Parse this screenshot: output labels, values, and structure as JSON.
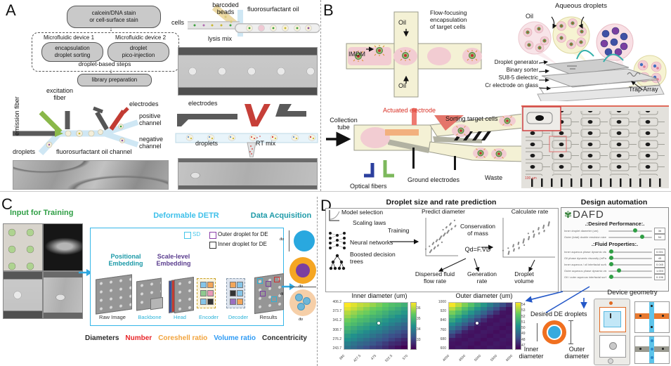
{
  "letters": {
    "a": "A",
    "b": "B",
    "c": "C",
    "d": "D"
  },
  "panelA": {
    "flow": {
      "stain": "calcein/DNA stain\nor cell-surface stain",
      "device1": "Microfluidic device 1",
      "device2": "Microfluidic device 2",
      "sort_box": "encapsulation\ndroplet sorting",
      "pico_box": "droplet\npico-injection",
      "steps": "droplet-based steps",
      "library": "library preparation",
      "arrow": "↓"
    },
    "sorter": {
      "emission": "emission fiber",
      "excitation": "excitation\nfiber",
      "electrodes": "electrodes",
      "positive": "positive\nchannel",
      "negative": "negative\nchannel",
      "droplets": "droplets",
      "oil": "fluorosurfactant oil channel"
    },
    "encap": {
      "cells": "cells",
      "beads": "barcoded\nbeads",
      "oil": "fluorosurfactant oil",
      "lysis": "lysis mix"
    },
    "pico": {
      "electrodes": "electrodes",
      "droplets": "droplets",
      "rt": "RT mix"
    }
  },
  "panelB": {
    "flow_focus": "Flow-focusing\nencapsulation\nof target cells",
    "oil_top": "Oil",
    "oil_bottom": "Oil",
    "imdm": "IMDM",
    "aqueous": "Aqueous droplets",
    "oil_right": "Oil",
    "stack": [
      "Droplet generator",
      "Binary sorter",
      "SU8-5 dielectric",
      "Cr electrode on glass"
    ],
    "trap_array": "Trap Array",
    "actuated": "Actuated electrode",
    "collection": "Collection\ntube",
    "sorting": "Sorting target cells",
    "ground": "Ground electrodes",
    "waste": "Waste",
    "fibers": "Optical fibers",
    "scale": "100 µm",
    "accent_red": "#d93025"
  },
  "panelC": {
    "input": "Input for Training",
    "detr": "Deformable DETR",
    "acq": "Data Acquisition",
    "legend": [
      {
        "label": "SD",
        "color": "#45c6ea"
      },
      {
        "label": "Outer droplet for DE",
        "color": "#8a3fa8"
      },
      {
        "label": "Inner droplet for DE",
        "color": "#333333"
      }
    ],
    "pos_embed": "Positional\nEmbedding",
    "scale_embed": "Scale-level\nEmbedding",
    "pipeline": [
      {
        "label": "Raw Image",
        "color": "#333333"
      },
      {
        "label": "Backbone",
        "color": "#2bb3d8"
      },
      {
        "label": "Head",
        "color": "#2bb3d8"
      },
      {
        "label": "Encoder",
        "color": "#2bb3d8"
      },
      {
        "label": "Decoder",
        "color": "#2bb3d8"
      },
      {
        "label": "Results",
        "color": "#333333"
      }
    ],
    "dims": {
      "outer": "d̄o",
      "inner": "d̄i"
    },
    "metrics": [
      {
        "label": "Diameters",
        "color": "#2b2b2b"
      },
      {
        "label": "Number",
        "color": "#e8262a"
      },
      {
        "label": "Coreshell ratio",
        "color": "#f2a33c"
      },
      {
        "label": "Volume ratio",
        "color": "#2f9bf4"
      },
      {
        "label": "Concentricity",
        "color": "#2b2b2b"
      }
    ],
    "title_colors": {
      "input": "#2e9e44",
      "detr": "#3ec0ea",
      "acq": "#1d9aa8"
    }
  },
  "panelD": {
    "pred_header": "Droplet size and rate prediction",
    "auto_header": "Design automation",
    "model_selection": "Model selection",
    "scaling": "Scaling laws",
    "training": "Training",
    "nn": "Neural networks",
    "trees": "Boosted decision\ntrees",
    "predict": "Predict diameter",
    "conservation": "Conservation\nof mass",
    "formula": "Qd=F.VD",
    "calc": "Calculate rate",
    "dispersed": "Dispersed fluid\nflow rate",
    "gen_rate": "Generation\nrate",
    "volume": "Droplet\nvolume",
    "dafd": {
      "logo": "DAFD",
      "flower": "✾",
      "desired_header": ".:Desired Performance:.",
      "fluid_header": ".:Fluid Properties:.",
      "desired_sliders": [
        {
          "label": "Inner droplet diameter (um)",
          "value": "36",
          "knob_pct": 62
        },
        {
          "label": "Outer (total) double emulsion size (um)",
          "value": "54",
          "knob_pct": 78
        }
      ],
      "fluid_sliders": [
        {
          "label": "Inner aqueous phase dynamic viscosity (mPa.s)",
          "value": "0.001",
          "knob_pct": 6
        },
        {
          "label": "Oil phase dynamic viscosity (mPa.s)",
          "value": "45",
          "knob_pct": 6
        },
        {
          "label": "Inner aqueous / oil interfacial surface tension (mN/m)",
          "value": "0.045",
          "knob_pct": 6
        },
        {
          "label": "Outer aqueous phase dynamic viscosity (mPa.s)",
          "value": "1.003",
          "knob_pct": 24
        },
        {
          "label": "Oil / outer aqueous interfacial surface tension (mN/m)",
          "value": "0.196",
          "knob_pct": 6
        }
      ],
      "accent_green": "#2f9e44"
    },
    "device_geometry": "Device geometry",
    "desired": "Desired DE droplets",
    "inner_d": "Inner\ndiameter",
    "outer_d": "Outer\ndiameter",
    "arrow_blue": "#2458c8"
  },
  "chart_data": [
    {
      "type": "heatmap",
      "title": "Inner diameter (um)",
      "colormap": "viridis",
      "x_ticks": [
        "380",
        "427.5",
        "475",
        "522.5",
        "570"
      ],
      "y_ticks": [
        "406.2",
        "373.7",
        "341.2",
        "308.7",
        "276.2",
        "243.7"
      ],
      "colorbar_ticks": [
        "36",
        "35",
        "34",
        "33"
      ],
      "vmin": 32.2,
      "vmax": 36.6,
      "marker": {
        "row": 5,
        "col": 5
      },
      "values": [
        [
          36.6,
          36.4,
          36.2,
          36.1,
          35.9,
          35.7,
          35.5,
          35.3,
          35.2,
          35.0
        ],
        [
          36.4,
          36.2,
          36.0,
          35.8,
          35.6,
          35.5,
          35.3,
          35.1,
          34.9,
          34.7
        ],
        [
          36.1,
          35.9,
          35.7,
          35.6,
          35.4,
          35.2,
          35.0,
          34.8,
          34.7,
          34.5
        ],
        [
          35.9,
          35.7,
          35.5,
          35.3,
          35.1,
          35.0,
          34.8,
          34.6,
          34.4,
          34.2
        ],
        [
          35.6,
          35.4,
          35.2,
          35.1,
          34.9,
          34.7,
          34.5,
          34.3,
          34.2,
          34.0
        ],
        [
          35.4,
          35.2,
          35.0,
          34.8,
          34.6,
          34.5,
          34.3,
          34.1,
          33.9,
          33.7
        ],
        [
          35.1,
          34.9,
          34.7,
          34.6,
          34.4,
          34.2,
          34.0,
          33.8,
          33.7,
          33.5
        ],
        [
          34.9,
          34.7,
          34.5,
          34.3,
          34.1,
          34.0,
          33.8,
          33.6,
          33.4,
          33.2
        ],
        [
          34.6,
          34.4,
          34.2,
          34.1,
          33.9,
          33.7,
          33.5,
          33.3,
          33.2,
          33.0
        ],
        [
          34.4,
          34.2,
          34.0,
          33.8,
          33.6,
          33.5,
          33.3,
          33.1,
          32.9,
          32.7
        ],
        [
          34.1,
          33.9,
          33.7,
          33.6,
          33.4,
          33.2,
          33.0,
          32.8,
          32.7,
          32.5
        ],
        [
          33.9,
          33.7,
          33.5,
          33.3,
          33.1,
          33.0,
          32.8,
          32.6,
          32.4,
          32.2
        ]
      ]
    },
    {
      "type": "heatmap",
      "title": "Outer diameter (um)",
      "colormap": "viridis",
      "x_ticks": [
        "4000",
        "4500",
        "5000",
        "5500",
        "6000"
      ],
      "y_ticks": [
        "1000",
        "920",
        "840",
        "760",
        "680",
        "600"
      ],
      "colorbar_ticks": [
        "54",
        "53",
        "52",
        "51",
        "50",
        "49",
        "48",
        "47"
      ],
      "vmin": 46.5,
      "vmax": 54.5,
      "marker": {
        "row": 5,
        "col": 4
      },
      "values": [
        [
          54.4,
          53.7,
          52.9,
          52.2,
          51.4,
          50.7,
          49.9,
          49.2,
          48.4,
          47.7
        ],
        [
          53.6,
          52.9,
          52.1,
          51.4,
          50.6,
          49.9,
          49.1,
          48.4,
          47.6,
          47.0
        ],
        [
          52.8,
          52.1,
          51.3,
          50.6,
          49.8,
          49.1,
          48.3,
          47.6,
          47.0,
          46.9
        ],
        [
          52.0,
          51.3,
          50.5,
          49.8,
          49.0,
          48.3,
          47.5,
          47.0,
          46.9,
          47.1
        ],
        [
          51.2,
          50.5,
          49.7,
          49.0,
          48.2,
          47.5,
          47.0,
          46.9,
          47.1,
          47.0
        ],
        [
          50.4,
          49.7,
          48.9,
          48.2,
          47.4,
          47.0,
          46.9,
          47.1,
          47.0,
          46.8
        ],
        [
          49.6,
          48.9,
          48.1,
          47.4,
          47.0,
          46.9,
          47.1,
          47.0,
          46.8,
          47.0
        ],
        [
          48.8,
          48.1,
          47.3,
          47.0,
          46.9,
          47.1,
          47.0,
          46.8,
          47.0,
          46.9
        ],
        [
          48.0,
          47.3,
          47.0,
          46.9,
          47.1,
          47.0,
          46.8,
          47.0,
          46.9,
          47.1
        ],
        [
          47.2,
          47.0,
          46.9,
          47.1,
          47.0,
          46.8,
          47.0,
          46.9,
          47.1,
          47.0
        ],
        [
          47.0,
          46.9,
          47.1,
          47.0,
          46.8,
          47.0,
          46.9,
          47.1,
          47.0,
          46.9
        ],
        [
          46.9,
          47.1,
          47.0,
          46.8,
          47.0,
          46.9,
          47.1,
          47.0,
          46.9,
          47.1
        ]
      ]
    }
  ]
}
